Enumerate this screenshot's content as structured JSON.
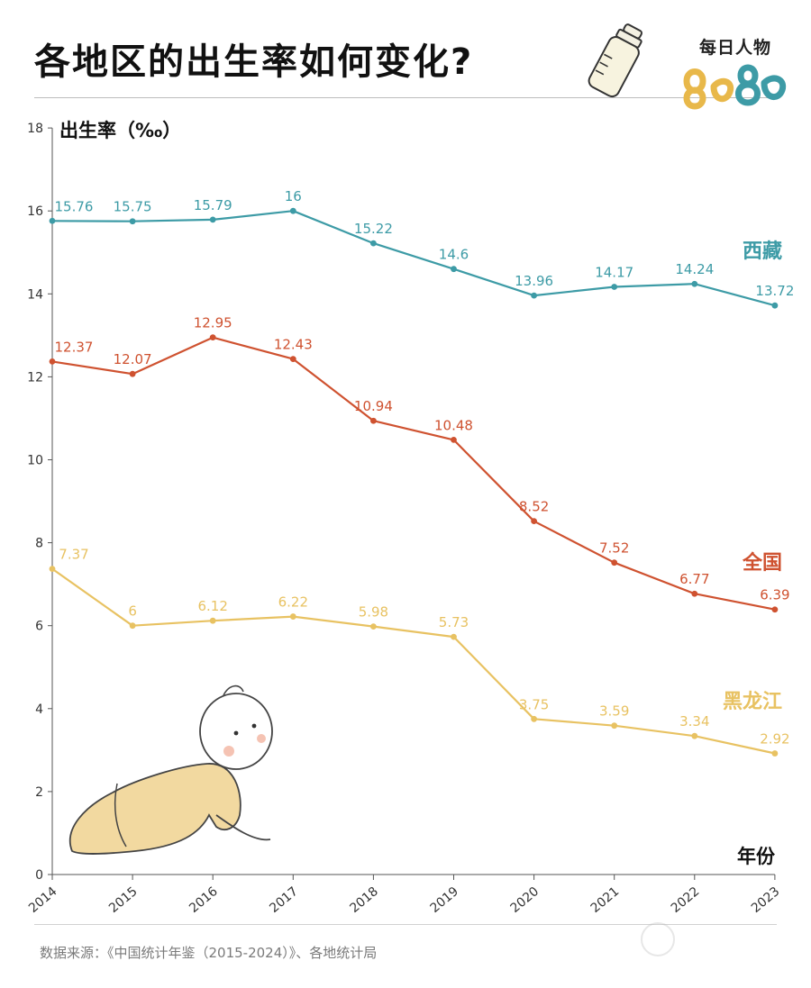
{
  "title": "各地区的出生率如何变化?",
  "brand": {
    "name": "每日人物"
  },
  "source": "数据来源：《中国统计年鉴（2015-2024）》、各地统计局",
  "colors": {
    "xizang": "#3d9ba6",
    "national": "#cf5230",
    "heilongjiang": "#e8c262",
    "axis": "#555555"
  },
  "chart_data": {
    "type": "line",
    "title": "各地区的出生率如何变化?",
    "ylabel": "出生率（‰）",
    "xlabel": "年份",
    "x": [
      "2014",
      "2015",
      "2016",
      "2017",
      "2018",
      "2019",
      "2020",
      "2021",
      "2022",
      "2023"
    ],
    "ylim": [
      0,
      18
    ],
    "yticks": [
      0,
      2,
      4,
      6,
      8,
      10,
      12,
      14,
      16,
      18
    ],
    "grid": false,
    "legend": "inline labels at right",
    "series": [
      {
        "name": "西藏",
        "color": "#3d9ba6",
        "values": [
          15.76,
          15.75,
          15.79,
          16,
          15.22,
          14.6,
          13.96,
          14.17,
          14.24,
          13.72
        ],
        "labels": [
          "15.76",
          "15.75",
          "15.79",
          "16",
          "15.22",
          "14.6",
          "13.96",
          "14.17",
          "14.24",
          "13.72"
        ]
      },
      {
        "name": "全国",
        "color": "#cf5230",
        "values": [
          12.37,
          12.07,
          12.95,
          12.43,
          10.94,
          10.48,
          8.52,
          7.52,
          6.77,
          6.39
        ],
        "labels": [
          "12.37",
          "12.07",
          "12.95",
          "12.43",
          "10.94",
          "10.48",
          "8.52",
          "7.52",
          "6.77",
          "6.39"
        ]
      },
      {
        "name": "黑龙江",
        "color": "#e8c262",
        "values": [
          7.37,
          6,
          6.12,
          6.22,
          5.98,
          5.73,
          3.75,
          3.59,
          3.34,
          2.92
        ],
        "labels": [
          "7.37",
          "6",
          "6.12",
          "6.22",
          "5.98",
          "5.73",
          "3.75",
          "3.59",
          "3.34",
          "2.92"
        ]
      }
    ]
  }
}
